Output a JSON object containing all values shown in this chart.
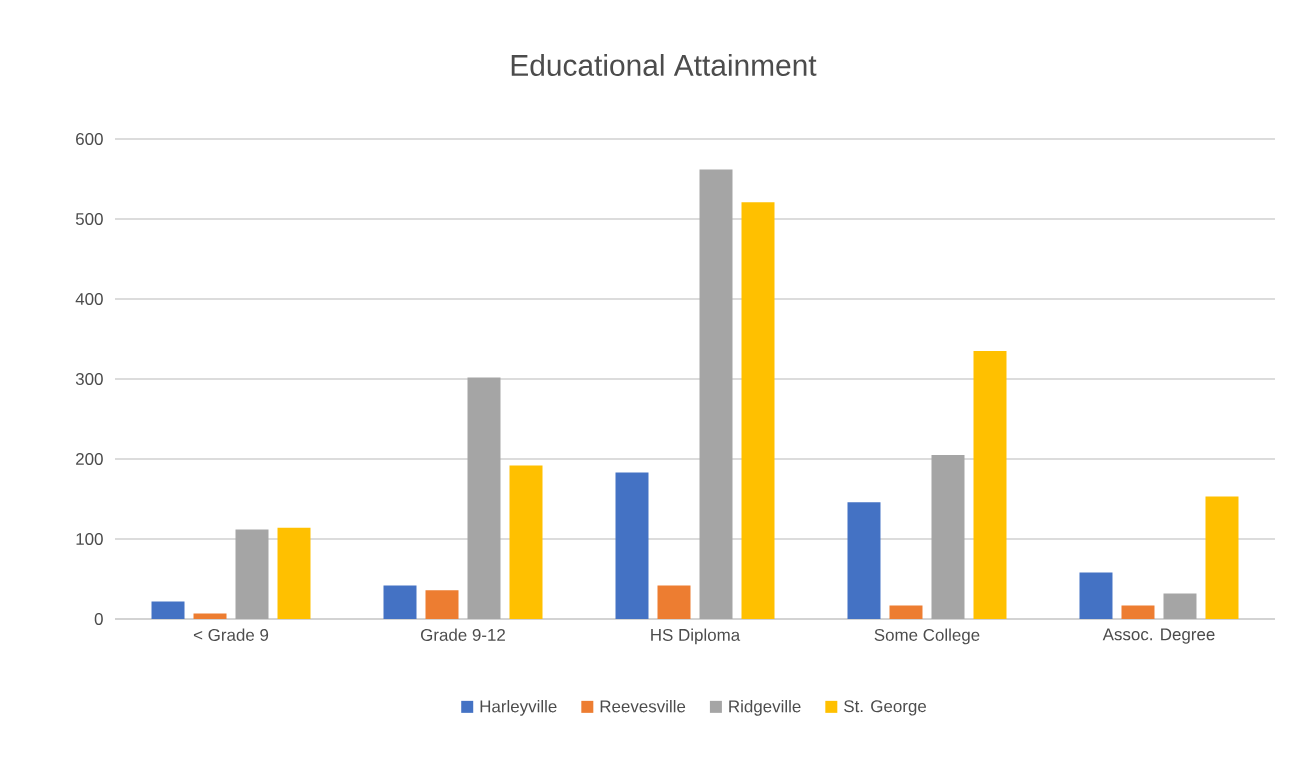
{
  "chart_data": {
    "type": "bar",
    "title": "Educational Attainment",
    "categories": [
      "< Grade 9",
      "Grade 9-12",
      "HS Diploma",
      "Some College",
      "Assoc. Degree"
    ],
    "series": [
      {
        "name": "Harleyville",
        "color": "#4472c4",
        "values": [
          22,
          42,
          183,
          146,
          58
        ]
      },
      {
        "name": "Reevesville",
        "color": "#ed7d31",
        "values": [
          7,
          36,
          42,
          17,
          17
        ]
      },
      {
        "name": "Ridgeville",
        "color": "#a5a5a5",
        "values": [
          112,
          302,
          562,
          205,
          32
        ]
      },
      {
        "name": "St. George",
        "color": "#ffc000",
        "values": [
          114,
          192,
          521,
          335,
          153
        ]
      }
    ],
    "ylim": [
      0,
      600
    ],
    "yticks": [
      0,
      100,
      200,
      300,
      400,
      500,
      600
    ],
    "grid": "y",
    "legend": "bottom"
  }
}
